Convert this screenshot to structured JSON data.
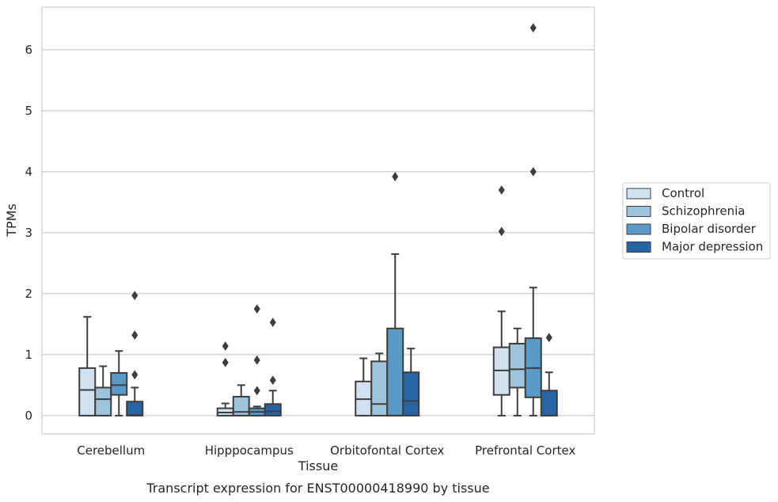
{
  "chart_data": {
    "type": "box",
    "xlabel": "Tissue",
    "ylabel": "TPMs",
    "caption": "Transcript expression for ENST00000418990 by tissue",
    "categories": [
      "Cerebellum",
      "Hipppocampus",
      "Orbitofontal Cortex",
      "Prefrontal Cortex"
    ],
    "ylim": [
      -0.3,
      6.7
    ],
    "yticks": [
      0,
      1,
      2,
      3,
      4,
      5,
      6
    ],
    "grid": true,
    "legend_position": "right",
    "series": [
      {
        "name": "Control",
        "color": "#d1e1f0",
        "boxes": [
          {
            "whisker_low": 0,
            "q1": 0,
            "median": 0.42,
            "q3": 0.78,
            "whisker_high": 1.62,
            "outliers": []
          },
          {
            "whisker_low": 0,
            "q1": 0,
            "median": 0.05,
            "q3": 0.12,
            "whisker_high": 0.2,
            "outliers": [
              1.14,
              0.87
            ]
          },
          {
            "whisker_low": 0,
            "q1": 0,
            "median": 0.27,
            "q3": 0.56,
            "whisker_high": 0.94,
            "outliers": []
          },
          {
            "whisker_low": 0,
            "q1": 0.34,
            "median": 0.74,
            "q3": 1.12,
            "whisker_high": 1.71,
            "outliers": [
              3.7,
              3.02
            ]
          }
        ]
      },
      {
        "name": "Schizophrenia",
        "color": "#9ec4dc",
        "boxes": [
          {
            "whisker_low": 0,
            "q1": 0,
            "median": 0.27,
            "q3": 0.46,
            "whisker_high": 0.81,
            "outliers": []
          },
          {
            "whisker_low": 0,
            "q1": 0,
            "median": 0.06,
            "q3": 0.31,
            "whisker_high": 0.5,
            "outliers": []
          },
          {
            "whisker_low": 0,
            "q1": 0,
            "median": 0.19,
            "q3": 0.89,
            "whisker_high": 1.02,
            "outliers": []
          },
          {
            "whisker_low": 0,
            "q1": 0.46,
            "median": 0.76,
            "q3": 1.18,
            "whisker_high": 1.43,
            "outliers": []
          }
        ]
      },
      {
        "name": "Bipolar disorder",
        "color": "#5a9ac7",
        "boxes": [
          {
            "whisker_low": 0,
            "q1": 0.34,
            "median": 0.5,
            "q3": 0.7,
            "whisker_high": 1.06,
            "outliers": []
          },
          {
            "whisker_low": 0,
            "q1": 0,
            "median": 0.06,
            "q3": 0.12,
            "whisker_high": 0.15,
            "outliers": [
              1.75,
              0.91,
              0.41
            ]
          },
          {
            "whisker_low": 0,
            "q1": 0,
            "median": 0,
            "q3": 1.43,
            "whisker_high": 2.65,
            "outliers": [
              3.92
            ]
          },
          {
            "whisker_low": 0,
            "q1": 0.3,
            "median": 0.78,
            "q3": 1.27,
            "whisker_high": 2.1,
            "outliers": [
              6.36,
              4.0
            ]
          }
        ]
      },
      {
        "name": "Major depression",
        "color": "#2764a4",
        "boxes": [
          {
            "whisker_low": 0,
            "q1": 0,
            "median": 0.01,
            "q3": 0.23,
            "whisker_high": 0.46,
            "outliers": [
              1.97,
              1.32,
              0.67
            ]
          },
          {
            "whisker_low": 0,
            "q1": 0,
            "median": 0.07,
            "q3": 0.19,
            "whisker_high": 0.41,
            "outliers": [
              1.53,
              0.58
            ]
          },
          {
            "whisker_low": 0,
            "q1": 0,
            "median": 0.24,
            "q3": 0.71,
            "whisker_high": 1.1,
            "outliers": []
          },
          {
            "whisker_low": 0,
            "q1": 0,
            "median": 0,
            "q3": 0.41,
            "whisker_high": 0.71,
            "outliers": [
              1.28
            ]
          }
        ]
      }
    ]
  }
}
